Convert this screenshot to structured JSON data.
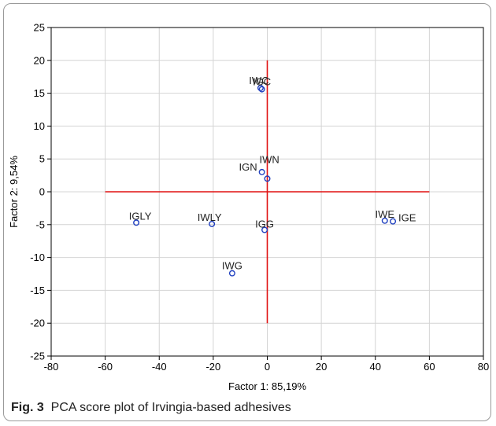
{
  "chart_data": {
    "type": "scatter",
    "xlabel": "Factor 1: 85,19%",
    "ylabel": "Factor 2:  9,54%",
    "xlim": [
      -80,
      80
    ],
    "ylim": [
      -25,
      25
    ],
    "x_ticks": [
      -80,
      -60,
      -40,
      -20,
      0,
      20,
      40,
      60,
      80
    ],
    "y_ticks": [
      -25,
      -20,
      -15,
      -10,
      -5,
      0,
      5,
      10,
      15,
      20,
      25
    ],
    "grid": true,
    "point_color": "#1f3fbf",
    "crosshair_color": "#e01010",
    "crosshair": {
      "h_from": -60,
      "h_to": 60,
      "v_from": -20,
      "v_to": 20
    },
    "points": [
      {
        "label": "IWC",
        "x": -2.5,
        "y": 15.8
      },
      {
        "label": "IGC",
        "x": -2.0,
        "y": 15.6
      },
      {
        "label": "IWN",
        "x": 0.0,
        "y": 2.0
      },
      {
        "label": "IGN",
        "x": -2.0,
        "y": 3.0
      },
      {
        "label": "IGLY",
        "x": -48.5,
        "y": -4.7
      },
      {
        "label": "IWLY",
        "x": -20.5,
        "y": -4.9
      },
      {
        "label": "IGG",
        "x": -1.0,
        "y": -5.8
      },
      {
        "label": "IWE",
        "x": 43.5,
        "y": -4.4
      },
      {
        "label": "IGE",
        "x": 46.5,
        "y": -4.5
      },
      {
        "label": "IWG",
        "x": -13.0,
        "y": -12.4
      }
    ]
  },
  "caption": {
    "fig_label": "Fig. 3",
    "text": "PCA score plot of Irvingia-based adhesives"
  }
}
